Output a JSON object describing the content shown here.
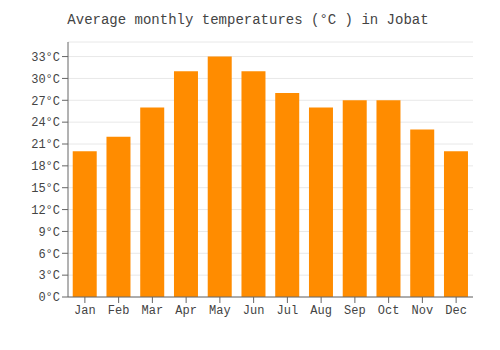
{
  "chart_data": {
    "type": "bar",
    "title": "Average monthly temperatures (°C ) in Jobat",
    "categories": [
      "Jan",
      "Feb",
      "Mar",
      "Apr",
      "May",
      "Jun",
      "Jul",
      "Aug",
      "Sep",
      "Oct",
      "Nov",
      "Dec"
    ],
    "values": [
      20,
      22,
      26,
      31,
      33,
      31,
      28,
      26,
      27,
      27,
      23,
      20
    ],
    "color": "#FF8C00",
    "ylim": [
      0,
      35
    ],
    "yticks": [
      {
        "value": 0,
        "label": "0°C"
      },
      {
        "value": 3,
        "label": "3°C"
      },
      {
        "value": 6,
        "label": "6°C"
      },
      {
        "value": 9,
        "label": "9°C"
      },
      {
        "value": 12,
        "label": "12°C"
      },
      {
        "value": 15,
        "label": "15°C"
      },
      {
        "value": 18,
        "label": "18°C"
      },
      {
        "value": 21,
        "label": "21°C"
      },
      {
        "value": 24,
        "label": "24°C"
      },
      {
        "value": 27,
        "label": "27°C"
      },
      {
        "value": 30,
        "label": "30°C"
      },
      {
        "value": 33,
        "label": "33°C"
      }
    ],
    "grid": true
  }
}
